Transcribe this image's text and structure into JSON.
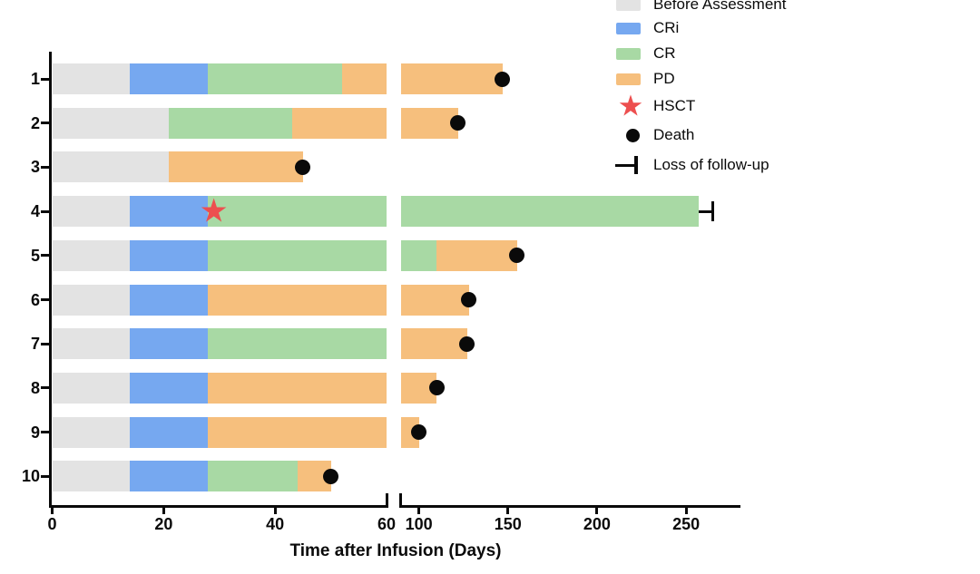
{
  "figure": {
    "xlabel": "Time after Infusion (Days)"
  },
  "legend": {
    "items": [
      {
        "key": "before-assessment",
        "type": "swatch",
        "color": "#e3e3e3",
        "label": "Before Assessment"
      },
      {
        "key": "cri",
        "type": "swatch",
        "color": "#76a8f0",
        "label": "CRi"
      },
      {
        "key": "cr",
        "type": "swatch",
        "color": "#a8d9a4",
        "label": "CR"
      },
      {
        "key": "pd",
        "type": "swatch",
        "color": "#f6bf7d",
        "label": "PD"
      },
      {
        "key": "hsct",
        "type": "star",
        "color": "#ed4f4f",
        "label": "HSCT"
      },
      {
        "key": "death",
        "type": "dot",
        "color": "#0a0a0a",
        "label": "Death"
      },
      {
        "key": "loss-of-follow-up",
        "type": "tbar",
        "color": "#0a0a0a",
        "label": "Loss of follow-up"
      }
    ]
  },
  "chart_data": {
    "type": "bar",
    "variant": "swimmer-plot",
    "orientation": "horizontal",
    "title": "",
    "xlabel": "Time after Infusion (Days)",
    "ylabel": "",
    "grid": false,
    "legend_position": "top-right",
    "x_axis": {
      "unit": "days",
      "break": true,
      "break_between": [
        60,
        90
      ],
      "segments": [
        {
          "range": [
            0,
            60
          ],
          "ticks": [
            "0",
            "20",
            "40",
            "60"
          ]
        },
        {
          "range": [
            90,
            280
          ],
          "ticks": [
            "100",
            "150",
            "200",
            "250"
          ]
        }
      ]
    },
    "categories": [
      "1",
      "2",
      "3",
      "4",
      "5",
      "6",
      "7",
      "8",
      "9",
      "10"
    ],
    "status_colors": {
      "Before Assessment": "#e3e3e3",
      "CRi": "#76a8f0",
      "CR": "#a8d9a4",
      "PD": "#f6bf7d"
    },
    "marker_colors": {
      "HSCT": "#ed4f4f",
      "Death": "#0a0a0a",
      "Loss of follow-up": "#0a0a0a"
    },
    "patients": [
      {
        "id": "1",
        "segments": [
          {
            "status": "Before Assessment",
            "start": 0,
            "end": 14
          },
          {
            "status": "CRi",
            "start": 14,
            "end": 28
          },
          {
            "status": "CR",
            "start": 28,
            "end": 52
          },
          {
            "status": "PD",
            "start": 52,
            "end": 147
          }
        ],
        "events": [
          {
            "type": "Death",
            "day": 147
          }
        ]
      },
      {
        "id": "2",
        "segments": [
          {
            "status": "Before Assessment",
            "start": 0,
            "end": 21
          },
          {
            "status": "CR",
            "start": 21,
            "end": 43
          },
          {
            "status": "PD",
            "start": 43,
            "end": 122
          }
        ],
        "events": [
          {
            "type": "Death",
            "day": 122
          }
        ]
      },
      {
        "id": "3",
        "segments": [
          {
            "status": "Before Assessment",
            "start": 0,
            "end": 21
          },
          {
            "status": "PD",
            "start": 21,
            "end": 45
          }
        ],
        "events": [
          {
            "type": "Death",
            "day": 45
          }
        ]
      },
      {
        "id": "4",
        "segments": [
          {
            "status": "Before Assessment",
            "start": 0,
            "end": 14
          },
          {
            "status": "CRi",
            "start": 14,
            "end": 28
          },
          {
            "status": "CR",
            "start": 28,
            "end": 257
          }
        ],
        "events": [
          {
            "type": "HSCT",
            "day": 29
          },
          {
            "type": "Loss of follow-up",
            "day": 265
          }
        ]
      },
      {
        "id": "5",
        "segments": [
          {
            "status": "Before Assessment",
            "start": 0,
            "end": 14
          },
          {
            "status": "CRi",
            "start": 14,
            "end": 28
          },
          {
            "status": "CR",
            "start": 28,
            "end": 110
          },
          {
            "status": "PD",
            "start": 110,
            "end": 155
          }
        ],
        "events": [
          {
            "type": "Death",
            "day": 155
          }
        ]
      },
      {
        "id": "6",
        "segments": [
          {
            "status": "Before Assessment",
            "start": 0,
            "end": 14
          },
          {
            "status": "CRi",
            "start": 14,
            "end": 28
          },
          {
            "status": "PD",
            "start": 28,
            "end": 128
          }
        ],
        "events": [
          {
            "type": "Death",
            "day": 128
          }
        ]
      },
      {
        "id": "7",
        "segments": [
          {
            "status": "Before Assessment",
            "start": 0,
            "end": 14
          },
          {
            "status": "CRi",
            "start": 14,
            "end": 28
          },
          {
            "status": "CR",
            "start": 28,
            "end": 90
          },
          {
            "status": "PD",
            "start": 90,
            "end": 127
          }
        ],
        "events": [
          {
            "type": "Death",
            "day": 127
          }
        ]
      },
      {
        "id": "8",
        "segments": [
          {
            "status": "Before Assessment",
            "start": 0,
            "end": 14
          },
          {
            "status": "CRi",
            "start": 14,
            "end": 28
          },
          {
            "status": "PD",
            "start": 28,
            "end": 110
          }
        ],
        "events": [
          {
            "type": "Death",
            "day": 110
          }
        ]
      },
      {
        "id": "9",
        "segments": [
          {
            "status": "Before Assessment",
            "start": 0,
            "end": 14
          },
          {
            "status": "CRi",
            "start": 14,
            "end": 28
          },
          {
            "status": "PD",
            "start": 28,
            "end": 100
          }
        ],
        "events": [
          {
            "type": "Death",
            "day": 100
          }
        ]
      },
      {
        "id": "10",
        "segments": [
          {
            "status": "Before Assessment",
            "start": 0,
            "end": 14
          },
          {
            "status": "CRi",
            "start": 14,
            "end": 28
          },
          {
            "status": "CR",
            "start": 28,
            "end": 44
          },
          {
            "status": "PD",
            "start": 44,
            "end": 50
          }
        ],
        "events": [
          {
            "type": "Death",
            "day": 50
          }
        ]
      }
    ]
  }
}
